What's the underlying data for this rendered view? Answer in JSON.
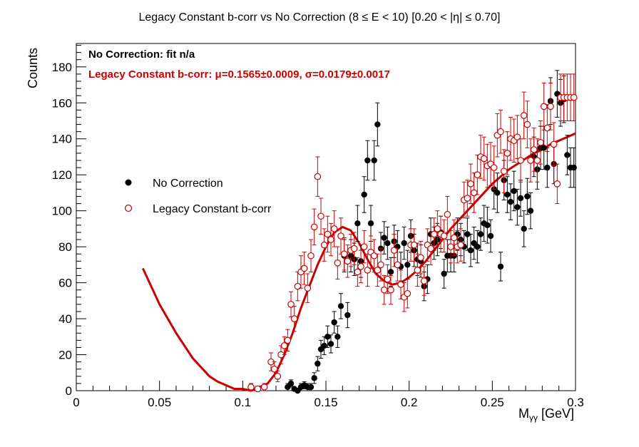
{
  "chart_data": {
    "type": "scatter",
    "title": "Legacy Constant b-corr vs No Correction   (8 ≤ E < 10)   [0.20 < |η| ≤ 0.70]",
    "xlabel_main": "M",
    "xlabel_sub": "γγ",
    "xlabel_unit": " [GeV]",
    "ylabel": "Counts",
    "xlim": [
      0,
      0.3
    ],
    "ylim": [
      0,
      193
    ],
    "x_ticks": [
      {
        "value": 0,
        "label": "0"
      },
      {
        "value": 0.05,
        "label": "0.05"
      },
      {
        "value": 0.1,
        "label": "0.1"
      },
      {
        "value": 0.15,
        "label": "0.15"
      },
      {
        "value": 0.2,
        "label": "0.2"
      },
      {
        "value": 0.25,
        "label": "0.25"
      },
      {
        "value": 0.3,
        "label": "0.3"
      }
    ],
    "y_ticks": [
      {
        "value": 0,
        "label": "0"
      },
      {
        "value": 20,
        "label": "20"
      },
      {
        "value": 40,
        "label": "40"
      },
      {
        "value": 60,
        "label": "60"
      },
      {
        "value": 80,
        "label": "80"
      },
      {
        "value": 100,
        "label": "100"
      },
      {
        "value": 120,
        "label": "120"
      },
      {
        "value": 140,
        "label": "140"
      },
      {
        "value": 160,
        "label": "160"
      },
      {
        "value": 180,
        "label": "180"
      }
    ],
    "annotations": {
      "no_correction": "No Correction:  fit n/a",
      "legacy": "Legacy Constant b-corr: μ=0.1565±0.0009,  σ=0.0179±0.0017"
    },
    "legend": {
      "placement": "center-left",
      "entries": [
        {
          "label": "No Correction",
          "marker": "filled-circle",
          "color": "#000000"
        },
        {
          "label": "Legacy Constant b-corr",
          "marker": "open-circle",
          "color": "#cc0000"
        }
      ]
    },
    "series": [
      {
        "name": "No Correction",
        "color": "#000000",
        "marker": "filled",
        "x": [
          0.127,
          0.129,
          0.131,
          0.133,
          0.135,
          0.137,
          0.139,
          0.141,
          0.143,
          0.145,
          0.147,
          0.149,
          0.151,
          0.153,
          0.155,
          0.157,
          0.159,
          0.161,
          0.163,
          0.165,
          0.167,
          0.169,
          0.171,
          0.173,
          0.175,
          0.177,
          0.179,
          0.181,
          0.183,
          0.185,
          0.187,
          0.189,
          0.191,
          0.193,
          0.195,
          0.197,
          0.199,
          0.201,
          0.203,
          0.205,
          0.207,
          0.209,
          0.211,
          0.213,
          0.215,
          0.217,
          0.219,
          0.221,
          0.223,
          0.225,
          0.227,
          0.229,
          0.231,
          0.233,
          0.235,
          0.237,
          0.239,
          0.241,
          0.243,
          0.245,
          0.247,
          0.249,
          0.251,
          0.253,
          0.255,
          0.257,
          0.259,
          0.261,
          0.263,
          0.265,
          0.267,
          0.269,
          0.271,
          0.273,
          0.275,
          0.277,
          0.279,
          0.281,
          0.283,
          0.285,
          0.287,
          0.289,
          0.291,
          0.293,
          0.295,
          0.297,
          0.299
        ],
        "y": [
          2,
          4,
          1,
          0,
          2,
          3,
          2,
          2,
          7,
          15,
          23,
          25,
          30,
          26,
          38,
          30,
          47,
          75,
          42,
          75,
          73,
          93,
          72,
          109,
          128,
          93,
          128,
          148,
          79,
          85,
          82,
          66,
          83,
          80,
          69,
          82,
          70,
          86,
          78,
          73,
          72,
          58,
          62,
          87,
          82,
          84,
          88,
          65,
          75,
          75,
          75,
          87,
          84,
          80,
          87,
          78,
          82,
          80,
          87,
          93,
          92,
          86,
          112,
          110,
          69,
          117,
          109,
          105,
          111,
          102,
          107,
          90,
          108,
          100,
          130,
          123,
          135,
          135,
          124,
          161,
          126,
          165,
          160,
          162,
          131,
          124,
          124
        ],
        "err": [
          2,
          2,
          1,
          1,
          2,
          2,
          2,
          2,
          3,
          4,
          5,
          5,
          6,
          5,
          6,
          6,
          7,
          9,
          7,
          9,
          9,
          10,
          9,
          10,
          11,
          10,
          11,
          12,
          9,
          9,
          9,
          8,
          9,
          9,
          8,
          9,
          8,
          9,
          9,
          9,
          9,
          8,
          8,
          9,
          9,
          9,
          9,
          8,
          9,
          9,
          9,
          9,
          9,
          9,
          9,
          9,
          9,
          9,
          9,
          10,
          10,
          9,
          11,
          11,
          8,
          11,
          10,
          10,
          11,
          10,
          10,
          10,
          10,
          10,
          11,
          11,
          12,
          12,
          11,
          13,
          11,
          13,
          13,
          13,
          11,
          11,
          11
        ]
      },
      {
        "name": "Legacy Constant b-corr",
        "color": "#cc0000",
        "marker": "open",
        "x": [
          0.105,
          0.109,
          0.113,
          0.117,
          0.119,
          0.121,
          0.123,
          0.125,
          0.127,
          0.129,
          0.131,
          0.133,
          0.135,
          0.137,
          0.139,
          0.141,
          0.143,
          0.145,
          0.147,
          0.149,
          0.151,
          0.153,
          0.155,
          0.157,
          0.159,
          0.161,
          0.163,
          0.165,
          0.167,
          0.169,
          0.171,
          0.173,
          0.175,
          0.177,
          0.179,
          0.181,
          0.183,
          0.185,
          0.187,
          0.189,
          0.191,
          0.193,
          0.195,
          0.197,
          0.199,
          0.201,
          0.203,
          0.205,
          0.207,
          0.209,
          0.211,
          0.213,
          0.215,
          0.217,
          0.219,
          0.221,
          0.223,
          0.225,
          0.227,
          0.229,
          0.231,
          0.233,
          0.235,
          0.237,
          0.239,
          0.241,
          0.243,
          0.245,
          0.247,
          0.249,
          0.251,
          0.253,
          0.255,
          0.257,
          0.259,
          0.261,
          0.263,
          0.265,
          0.267,
          0.269,
          0.271,
          0.273,
          0.275,
          0.277,
          0.279,
          0.281,
          0.283,
          0.285,
          0.287,
          0.289,
          0.291,
          0.293,
          0.295,
          0.297,
          0.299
        ],
        "y": [
          2,
          1,
          2,
          16,
          12,
          8,
          20,
          25,
          28,
          48,
          40,
          58,
          66,
          68,
          57,
          75,
          91,
          119,
          97,
          81,
          87,
          84,
          90,
          71,
          86,
          76,
          72,
          78,
          79,
          66,
          69,
          80,
          67,
          77,
          75,
          67,
          70,
          56,
          62,
          56,
          78,
          70,
          59,
          52,
          54,
          81,
          81,
          67,
          74,
          61,
          81,
          79,
          87,
          90,
          87,
          86,
          98,
          80,
          85,
          80,
          81,
          106,
          107,
          115,
          110,
          120,
          130,
          129,
          125,
          126,
          124,
          142,
          144,
          122,
          132,
          140,
          139,
          141,
          128,
          153,
          148,
          128,
          134,
          128,
          138,
          158,
          146,
          158,
          137,
          115,
          163,
          163,
          163,
          163,
          163
        ],
        "err": [
          2,
          1,
          2,
          5,
          4,
          3,
          5,
          5,
          6,
          7,
          7,
          8,
          9,
          9,
          8,
          9,
          10,
          11,
          10,
          9,
          10,
          9,
          10,
          9,
          10,
          9,
          9,
          9,
          9,
          8,
          9,
          9,
          9,
          9,
          9,
          9,
          9,
          8,
          8,
          8,
          9,
          9,
          8,
          8,
          8,
          9,
          9,
          9,
          9,
          8,
          9,
          9,
          9,
          10,
          10,
          9,
          10,
          9,
          10,
          9,
          9,
          10,
          10,
          11,
          11,
          11,
          12,
          12,
          12,
          12,
          12,
          12,
          12,
          12,
          12,
          12,
          12,
          12,
          12,
          13,
          13,
          12,
          12,
          12,
          12,
          13,
          13,
          13,
          12,
          11,
          13,
          13,
          13,
          13,
          13
        ]
      }
    ],
    "fit_curve": {
      "color": "#cc0000",
      "x": [
        0.04,
        0.045,
        0.05,
        0.055,
        0.06,
        0.065,
        0.07,
        0.075,
        0.08,
        0.085,
        0.09,
        0.095,
        0.1,
        0.105,
        0.11,
        0.115,
        0.12,
        0.125,
        0.13,
        0.135,
        0.14,
        0.145,
        0.15,
        0.155,
        0.16,
        0.165,
        0.17,
        0.175,
        0.18,
        0.185,
        0.19,
        0.195,
        0.2,
        0.205,
        0.21,
        0.215,
        0.22,
        0.225,
        0.23,
        0.235,
        0.24,
        0.245,
        0.25,
        0.255,
        0.26,
        0.265,
        0.27,
        0.275,
        0.28,
        0.285,
        0.29,
        0.295,
        0.3
      ],
      "y": [
        68,
        58,
        48,
        40,
        32,
        25,
        18,
        13,
        8,
        5,
        3,
        1,
        1,
        0,
        2,
        4,
        10,
        20,
        32,
        46,
        58,
        70,
        80,
        88,
        91,
        89,
        82,
        73,
        65,
        61,
        59,
        60,
        63,
        67,
        72,
        78,
        84,
        90,
        95,
        100,
        105,
        110,
        115,
        119,
        123,
        126,
        129,
        132,
        134,
        137,
        139,
        141,
        143
      ]
    }
  }
}
